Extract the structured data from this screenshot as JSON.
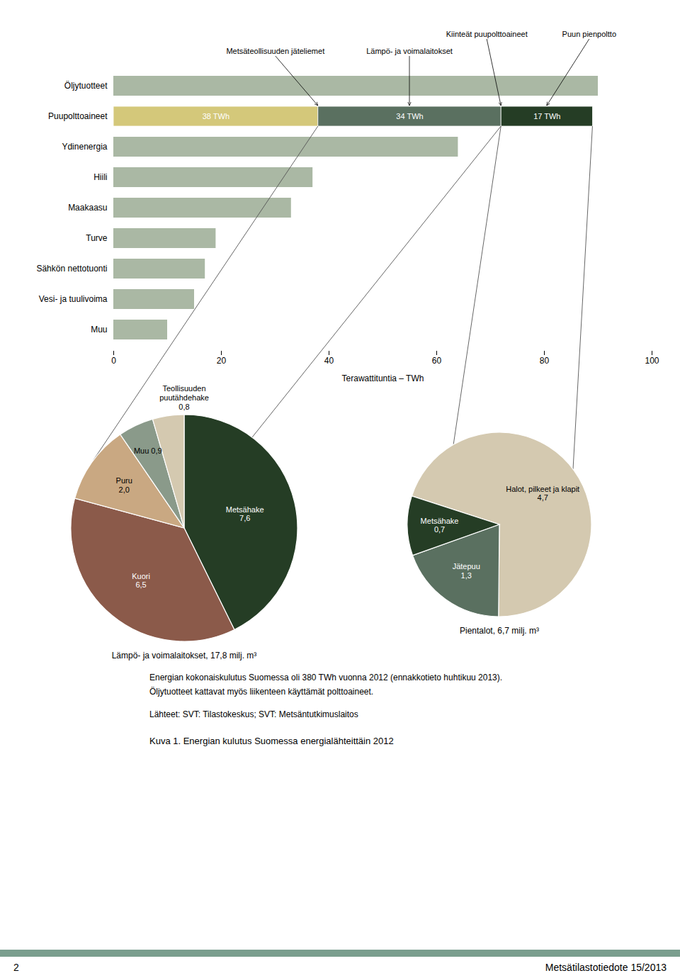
{
  "chart_data": [
    {
      "type": "bar",
      "orientation": "horizontal",
      "categories": [
        "Öljytuotteet",
        "Puupolttoaineet",
        "Ydinenergia",
        "Hiili",
        "Maakaasu",
        "Turve",
        "Sähkön nettotuonti",
        "Vesi- ja tuulivoima",
        "Muu"
      ],
      "values": [
        90,
        89,
        64,
        37,
        33,
        19,
        17,
        15,
        10
      ],
      "color": "#aab8a4",
      "xlabel": "Terawattituntia – TWh",
      "xlim": [
        0,
        100
      ],
      "xticks": [
        0,
        20,
        40,
        60,
        80,
        100
      ],
      "segments": {
        "category": "Puupolttoaineet",
        "values": [
          38,
          34,
          17
        ],
        "value_labels": [
          "38 TWh",
          "34 TWh",
          "17 TWh"
        ],
        "colors": [
          "#d4c87a",
          "#5a7060",
          "#253d25"
        ],
        "data_labels": true
      },
      "annotations": [
        {
          "text": "Metsäteollisuuden jäteliemet",
          "x": 38
        },
        {
          "text": "Kiinteät puupolttoaineet",
          "x": 72
        },
        {
          "text": "Lämpö- ja voimalaitokset",
          "x": 55
        },
        {
          "text": "Puun pienpoltto",
          "x": 80.5
        }
      ]
    },
    {
      "type": "pie",
      "title": "Lämpö- ja voimalaitokset, 17,8 milj. m³",
      "categories": [
        "Metsähake\n7,6",
        "Kuori\n6,5",
        "Puru\n2,0",
        "Muu 0,9",
        "Teollisuuden\npuutähdehake\n0,8"
      ],
      "values": [
        7.6,
        6.5,
        2.0,
        0.9,
        0.8
      ],
      "colors": [
        "#253d25",
        "#8b5a4a",
        "#c9a882",
        "#8a9a8a",
        "#d4c9b0"
      ]
    },
    {
      "type": "pie",
      "title": "Pientalot, 6,7 milj. m³",
      "categories": [
        "Halot, pilkeet ja klapit\n4,7",
        "Jätepuu\n1,3",
        "Metsähake\n0,7"
      ],
      "values": [
        4.7,
        1.3,
        0.7
      ],
      "colors": [
        "#d4c9b0",
        "#5a7060",
        "#253d25"
      ]
    }
  ],
  "notes": [
    "Energian kokonaiskulutus Suomessa oli 380 TWh vuonna 2012 (ennakkotieto huhtikuu 2013).",
    "Öljytuotteet kattavat myös liikenteen käyttämät polttoaineet.",
    "Lähteet: SVT: Tilastokeskus; SVT: Metsäntutkimuslaitos"
  ],
  "caption": "Kuva 1.  Energian kulutus Suomessa energialähteittäin 2012",
  "footer": {
    "left": "2",
    "right": "Metsätilastotiedote 15/2013",
    "color": "#7a9e8e"
  }
}
